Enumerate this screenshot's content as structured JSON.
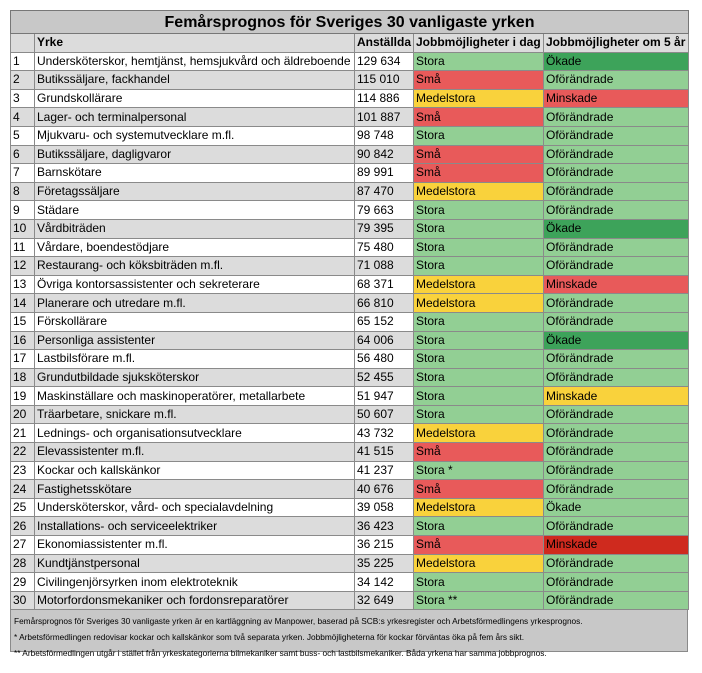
{
  "table": {
    "title": "Femårsprognos för Sveriges 30 vanligaste yrken",
    "header": [
      "",
      "Yrke",
      "Anställda",
      "Jobbmöjligheter i dag",
      "Jobbmöjligheter om 5 år"
    ],
    "rows": [
      [
        "1",
        "Undersköterskor, hemtjänst, hemsjukvård och äldreboende",
        "129 634",
        "Stora",
        "Ökade"
      ],
      [
        "2",
        "Butikssäljare, fackhandel",
        "115 010",
        "Små",
        "Oförändrade"
      ],
      [
        "3",
        "Grundskollärare",
        "114 886",
        "Medelstora",
        "Minskade"
      ],
      [
        "4",
        "Lager- och terminalpersonal",
        "101 887",
        "Små",
        "Oförändrade"
      ],
      [
        "5",
        "Mjukvaru- och systemutvecklare m.fl.",
        "98 748",
        "Stora",
        "Oförändrade"
      ],
      [
        "6",
        "Butikssäljare, dagligvaror",
        "90 842",
        "Små",
        "Oförändrade"
      ],
      [
        "7",
        "Barnskötare",
        "89 991",
        "Små",
        "Oförändrade"
      ],
      [
        "8",
        "Företagssäljare",
        "87 470",
        "Medelstora",
        "Oförändrade"
      ],
      [
        "9",
        "Städare",
        "79 663",
        "Stora",
        "Oförändrade"
      ],
      [
        "10",
        "Vårdbiträden",
        "79 395",
        "Stora",
        "Ökade"
      ],
      [
        "11",
        "Vårdare, boendestödjare",
        "75 480",
        "Stora",
        "Oförändrade"
      ],
      [
        "12",
        "Restaurang- och köksbiträden m.fl.",
        "71 088",
        "Stora",
        "Oförändrade"
      ],
      [
        "13",
        "Övriga kontorsassistenter och sekreterare",
        "68 371",
        "Medelstora",
        "Minskade"
      ],
      [
        "14",
        "Planerare och utredare m.fl.",
        "66 810",
        "Medelstora",
        "Oförändrade"
      ],
      [
        "15",
        "Förskollärare",
        "65 152",
        "Stora",
        "Oförändrade"
      ],
      [
        "16",
        "Personliga assistenter",
        "64 006",
        "Stora",
        "Ökade"
      ],
      [
        "17",
        "Lastbilsförare m.fl.",
        "56 480",
        "Stora",
        "Oförändrade"
      ],
      [
        "18",
        "Grundutbildade sjuksköterskor",
        "52 455",
        "Stora",
        "Oförändrade"
      ],
      [
        "19",
        "Maskinställare och maskinoperatörer, metallarbete",
        "51 947",
        "Stora",
        "Minskade"
      ],
      [
        "20",
        "Träarbetare, snickare m.fl.",
        "50 607",
        "Stora",
        "Oförändrade"
      ],
      [
        "21",
        "Lednings- och organisationsutvecklare",
        "43 732",
        "Medelstora",
        "Oförändrade"
      ],
      [
        "22",
        "Elevassistenter m.fl.",
        "41 515",
        "Små",
        "Oförändrade"
      ],
      [
        "23",
        "Kockar och kallskänkor",
        "41 237",
        "Stora *",
        "Oförändrade"
      ],
      [
        "24",
        "Fastighetsskötare",
        "40 676",
        "Små",
        "Oförändrade"
      ],
      [
        "25",
        "Undersköterskor, vård- och specialavdelning",
        "39 058",
        "Medelstora",
        "Ökade"
      ],
      [
        "26",
        "Installations- och serviceelektriker",
        "36 423",
        "Stora",
        "Oförändrade"
      ],
      [
        "27",
        "Ekonomiassistenter m.fl.",
        "36 215",
        "Små",
        "Minskade"
      ],
      [
        "28",
        "Kundtjänstpersonal",
        "35 225",
        "Medelstora",
        "Oförändrade"
      ],
      [
        "29",
        "Civilingenjörsyrken inom elektroteknik",
        "34 142",
        "Stora",
        "Oförändrade"
      ],
      [
        "30",
        "Motorfordonsmekaniker och fordonsreparatörer",
        "32 649",
        "Stora **",
        "Oförändrade"
      ]
    ],
    "fills": [
      [
        "#92cf94",
        "#3da35a"
      ],
      [
        "#e85a5a",
        "#92cf94"
      ],
      [
        "#f9d23c",
        "#e85a5a"
      ],
      [
        "#e85a5a",
        "#92cf94"
      ],
      [
        "#92cf94",
        "#92cf94"
      ],
      [
        "#e85a5a",
        "#92cf94"
      ],
      [
        "#e85a5a",
        "#92cf94"
      ],
      [
        "#f9d23c",
        "#92cf94"
      ],
      [
        "#92cf94",
        "#92cf94"
      ],
      [
        "#92cf94",
        "#3da35a"
      ],
      [
        "#92cf94",
        "#92cf94"
      ],
      [
        "#92cf94",
        "#92cf94"
      ],
      [
        "#f9d23c",
        "#e85a5a"
      ],
      [
        "#f9d23c",
        "#92cf94"
      ],
      [
        "#92cf94",
        "#92cf94"
      ],
      [
        "#92cf94",
        "#3da35a"
      ],
      [
        "#92cf94",
        "#92cf94"
      ],
      [
        "#92cf94",
        "#92cf94"
      ],
      [
        "#92cf94",
        "#f9d23c"
      ],
      [
        "#92cf94",
        "#92cf94"
      ],
      [
        "#f9d23c",
        "#92cf94"
      ],
      [
        "#e85a5a",
        "#92cf94"
      ],
      [
        "#92cf94",
        "#92cf94"
      ],
      [
        "#e85a5a",
        "#92cf94"
      ],
      [
        "#f9d23c",
        "#92cf94"
      ],
      [
        "#92cf94",
        "#92cf94"
      ],
      [
        "#e85a5a",
        "#cf2a1e"
      ],
      [
        "#f9d23c",
        "#92cf94"
      ],
      [
        "#92cf94",
        "#92cf94"
      ],
      [
        "#92cf94",
        "#92cf94"
      ]
    ],
    "notes": [
      "Femårsprognos för Sveriges 30 vanligaste yrken är en kartläggning av Manpower, baserad på SCB:s yrkesregister och Arbetsförmedlingens yrkesprognos.",
      "* Arbetsförmedlingen redovisar kockar och kallskänkor som två separata yrken. Jobbmöjligheterna för kockar förväntas öka på fem års sikt.",
      "** Arbetsförmedlingen utgår i stället från yrkeskategorierna bilmekaniker samt buss- och lastbilsmekaniker. Båda yrkena har samma jobbprognos."
    ]
  }
}
